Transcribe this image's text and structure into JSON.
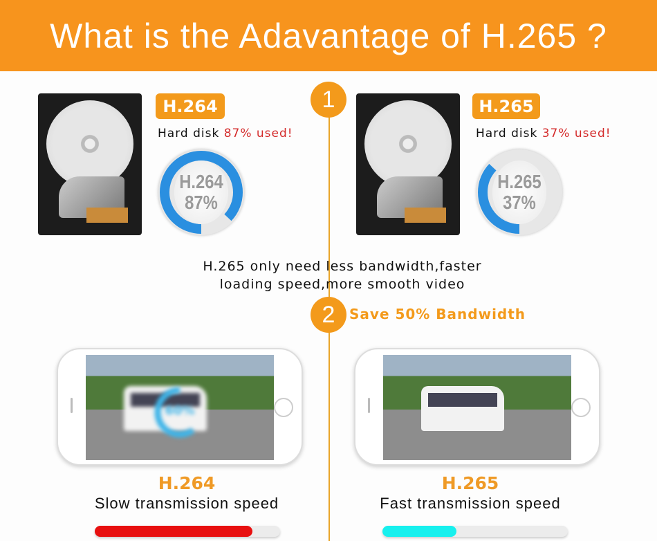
{
  "title": "What is the Adavantage of H.265 ?",
  "steps": [
    "1",
    "2"
  ],
  "left_disk": {
    "badge": "H.264",
    "text_prefix": "Hard disk ",
    "pct_text": "87% used!",
    "ring_label": "H.264",
    "ring_pct": "87%",
    "ring_value": 87
  },
  "right_disk": {
    "badge": "H.265",
    "text_prefix": "Hard disk ",
    "pct_text": "37% used!",
    "ring_label": "H.265",
    "ring_pct": "37%",
    "ring_value": 37
  },
  "middle_text": [
    "H.265 only need less bandwidth,faster",
    "loading speed,more smooth video"
  ],
  "save_text": "Save 50% Bandwidth",
  "left_video": {
    "loading": "60%",
    "loading_value": 60,
    "codec": "H.264",
    "caption": "Slow transmission speed",
    "speed_bar": 0.85,
    "bar_color": "#e81010"
  },
  "right_video": {
    "codec": "H.265",
    "caption": "Fast transmission speed",
    "speed_bar": 0.4,
    "bar_color": "#17f0ee"
  },
  "colors": {
    "accent": "#f7941d",
    "ring_blue": "#2a8fe0",
    "used_red": "#d42b2b"
  }
}
